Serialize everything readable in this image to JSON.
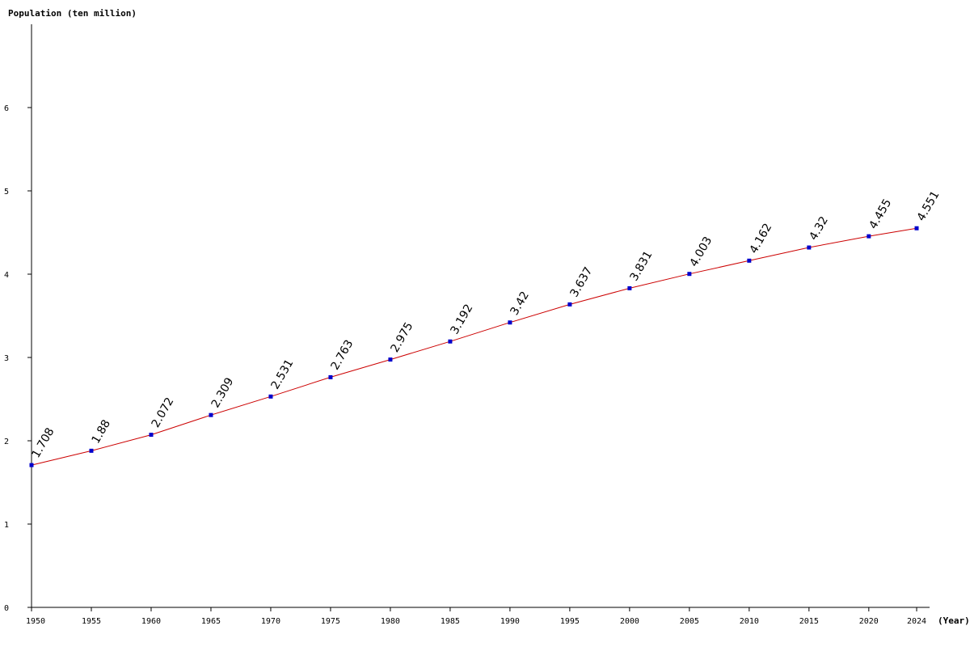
{
  "chart_data": {
    "type": "line",
    "ylabel": "Population (ten million)",
    "xlabel": "(Year)",
    "x": [
      1950,
      1955,
      1960,
      1965,
      1970,
      1975,
      1980,
      1985,
      1990,
      1995,
      2000,
      2005,
      2010,
      2015,
      2020,
      2024
    ],
    "x_tick_labels": [
      "1950",
      "1955",
      "1960",
      "1965",
      "1970",
      "1975",
      "1980",
      "1985",
      "1990",
      "1995",
      "2000",
      "2005",
      "2010",
      "2015",
      "2020",
      "2024"
    ],
    "series": [
      {
        "values": [
          1.708,
          1.88,
          2.072,
          2.309,
          2.531,
          2.763,
          2.975,
          3.192,
          3.42,
          3.637,
          3.831,
          4.003,
          4.162,
          4.32,
          4.455,
          4.551
        ],
        "data_labels": [
          "1.708",
          "1.88",
          "2.072",
          "2.309",
          "2.531",
          "2.763",
          "2.975",
          "3.192",
          "3.42",
          "3.637",
          "3.831",
          "4.003",
          "4.162",
          "4.32",
          "4.455",
          "4.551"
        ],
        "line_color": "#cc0000",
        "marker_color": "#0000cc"
      }
    ],
    "y_ticks": [
      0,
      1,
      2,
      3,
      4,
      5,
      6
    ],
    "y_tick_labels": [
      "0",
      "1",
      "2",
      "3",
      "4",
      "5",
      "6"
    ],
    "ylim": [
      0,
      7
    ],
    "xlim": [
      1950,
      2024
    ],
    "grid": false,
    "legend": "none"
  }
}
